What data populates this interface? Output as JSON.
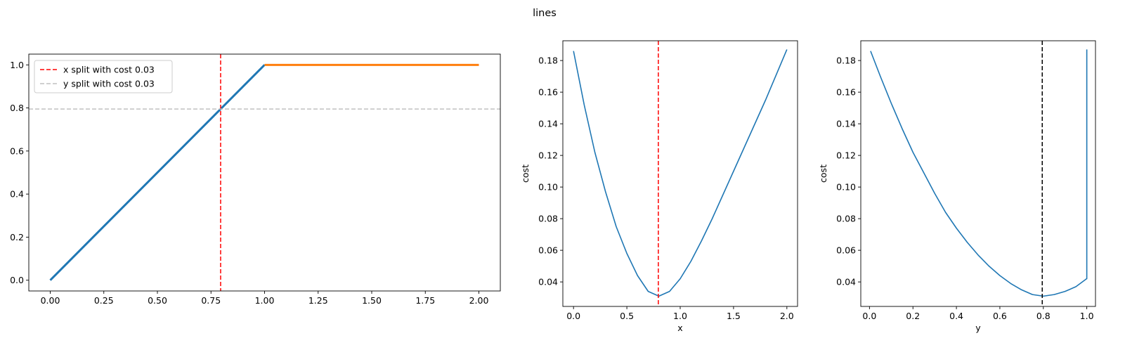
{
  "figure": {
    "title": "lines"
  },
  "chart_data": [
    {
      "type": "line",
      "title": "",
      "xlabel": "",
      "ylabel": "",
      "xlim": [
        -0.1,
        2.1
      ],
      "ylim": [
        -0.05,
        1.05
      ],
      "xticks": [
        0.0,
        0.25,
        0.5,
        0.75,
        1.0,
        1.25,
        1.5,
        1.75,
        2.0
      ],
      "xtick_labels": [
        "0.00",
        "0.25",
        "0.50",
        "0.75",
        "1.00",
        "1.25",
        "1.50",
        "1.75",
        "2.00"
      ],
      "yticks": [
        0.0,
        0.2,
        0.4,
        0.6,
        0.8,
        1.0
      ],
      "ytick_labels": [
        "0.0",
        "0.2",
        "0.4",
        "0.6",
        "0.8",
        "1.0"
      ],
      "grid": false,
      "legend_position": "top-left",
      "series": [
        {
          "color": "#1f77b4",
          "x": [
            0.0,
            1.0
          ],
          "y": [
            0.0,
            1.0
          ]
        },
        {
          "color": "#ff7f0e",
          "x": [
            1.0,
            2.0
          ],
          "y": [
            1.0,
            1.0
          ]
        }
      ],
      "reference_lines": [
        {
          "orientation": "vertical",
          "value": 0.795,
          "color": "#ff0000",
          "style": "dashed",
          "label": "x split with cost 0.03"
        },
        {
          "orientation": "horizontal",
          "value": 0.795,
          "color": "#c0c0c0",
          "style": "dashed",
          "label": "y split with cost 0.03"
        }
      ]
    },
    {
      "type": "line",
      "title": "",
      "xlabel": "x",
      "ylabel": "cost",
      "xlim": [
        -0.1,
        2.1
      ],
      "ylim": [
        0.0245,
        0.1925
      ],
      "xticks": [
        0.0,
        0.5,
        1.0,
        1.5,
        2.0
      ],
      "xtick_labels": [
        "0.0",
        "0.5",
        "1.0",
        "1.5",
        "2.0"
      ],
      "yticks": [
        0.04,
        0.06,
        0.08,
        0.1,
        0.12,
        0.14,
        0.16,
        0.18
      ],
      "ytick_labels": [
        "0.04",
        "0.06",
        "0.08",
        "0.10",
        "0.12",
        "0.14",
        "0.16",
        "0.18"
      ],
      "grid": false,
      "series": [
        {
          "color": "#1f77b4",
          "x": [
            0.0,
            0.1,
            0.2,
            0.3,
            0.4,
            0.5,
            0.6,
            0.7,
            0.8,
            0.9,
            1.0,
            1.1,
            1.2,
            1.3,
            1.4,
            1.5,
            1.6,
            1.7,
            1.8,
            1.9,
            2.0
          ],
          "y": [
            0.186,
            0.152,
            0.122,
            0.097,
            0.075,
            0.058,
            0.044,
            0.034,
            0.031,
            0.034,
            0.042,
            0.053,
            0.066,
            0.08,
            0.095,
            0.11,
            0.125,
            0.14,
            0.155,
            0.171,
            0.187
          ]
        }
      ],
      "reference_lines": [
        {
          "orientation": "vertical",
          "value": 0.795,
          "color": "#ff0000",
          "style": "dashed"
        }
      ]
    },
    {
      "type": "line",
      "title": "",
      "xlabel": "y",
      "ylabel": "cost",
      "xlim": [
        -0.04,
        1.04
      ],
      "ylim": [
        0.0245,
        0.1925
      ],
      "xticks": [
        0.0,
        0.2,
        0.4,
        0.6,
        0.8,
        1.0
      ],
      "xtick_labels": [
        "0.0",
        "0.2",
        "0.4",
        "0.6",
        "0.8",
        "1.0"
      ],
      "yticks": [
        0.04,
        0.06,
        0.08,
        0.1,
        0.12,
        0.14,
        0.16,
        0.18
      ],
      "ytick_labels": [
        "0.04",
        "0.06",
        "0.08",
        "0.10",
        "0.12",
        "0.14",
        "0.16",
        "0.18"
      ],
      "grid": false,
      "series": [
        {
          "color": "#1f77b4",
          "x": [
            0.005,
            0.05,
            0.1,
            0.15,
            0.2,
            0.25,
            0.3,
            0.35,
            0.4,
            0.45,
            0.5,
            0.55,
            0.6,
            0.65,
            0.7,
            0.75,
            0.8,
            0.85,
            0.9,
            0.95,
            0.999,
            1.0,
            1.0
          ],
          "y": [
            0.186,
            0.17,
            0.153,
            0.137,
            0.122,
            0.109,
            0.096,
            0.084,
            0.074,
            0.065,
            0.057,
            0.05,
            0.044,
            0.039,
            0.035,
            0.032,
            0.031,
            0.032,
            0.034,
            0.037,
            0.042,
            0.042,
            0.187
          ]
        }
      ],
      "reference_lines": [
        {
          "orientation": "vertical",
          "value": 0.795,
          "color": "#000000",
          "style": "dashed"
        }
      ]
    }
  ]
}
